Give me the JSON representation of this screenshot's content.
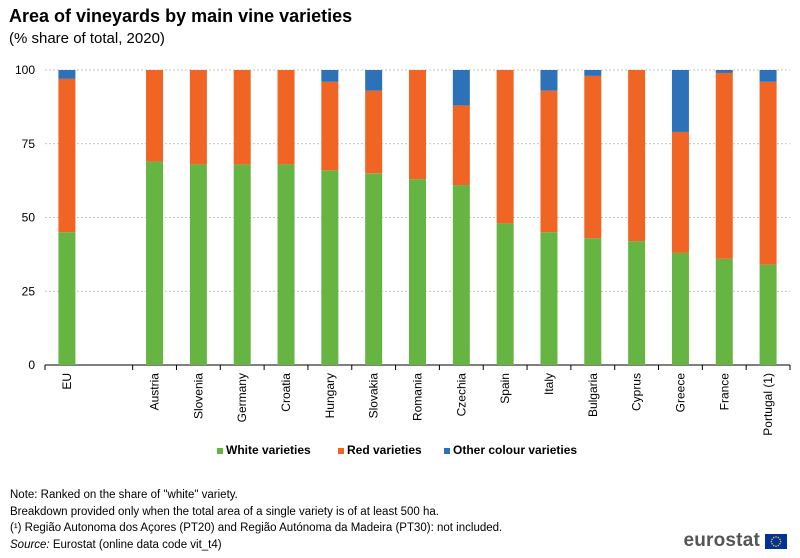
{
  "header": {
    "title": "Area of vineyards by main vine varieties",
    "subtitle": "(% share of total, 2020)"
  },
  "chart_data": {
    "type": "bar",
    "stacked": true,
    "categories": [
      "EU",
      "Austria",
      "Slovenia",
      "Germany",
      "Croatia",
      "Hungary",
      "Slovakia",
      "Romania",
      "Czechia",
      "Spain",
      "Italy",
      "Bulgaria",
      "Cyprus",
      "Greece",
      "France",
      "Portugal (1)"
    ],
    "series": [
      {
        "name": "White varieties",
        "color": "#66b543",
        "values": [
          45,
          69,
          68,
          68,
          68,
          66,
          65,
          63,
          61,
          48,
          45,
          43,
          42,
          38,
          36,
          34
        ]
      },
      {
        "name": "Red varieties",
        "color": "#f06424",
        "values": [
          52,
          31,
          32,
          32,
          32,
          30,
          28,
          37,
          27,
          52,
          48,
          55,
          58,
          41,
          63,
          62
        ]
      },
      {
        "name": "Other colour varieties",
        "color": "#2d71b8",
        "values": [
          3,
          0,
          0,
          0,
          0,
          4,
          7,
          0,
          12,
          0,
          7,
          2,
          0,
          21,
          1,
          4
        ]
      }
    ],
    "ylim": [
      0,
      100
    ],
    "yticks": [
      "0",
      "25",
      "50",
      "75",
      "100"
    ],
    "xlabel": "",
    "ylabel": "",
    "grid": true,
    "legend_position": "bottom"
  },
  "notes": {
    "line1": "Note: Ranked on the share of \"white\" variety.",
    "line2": "Breakdown provided only when the total area of a single variety is of at least 500 ha.",
    "line3": "(¹)  Região Autonoma dos Açores (PT20) and Região Autónoma da Madeira (PT30): not included.",
    "source_label": "Source:",
    "source_text": " Eurostat (online data code vit_t4)"
  },
  "logo": {
    "text": "eurostat",
    "flag_color": "#003399",
    "star_color": "#ffcc00"
  }
}
